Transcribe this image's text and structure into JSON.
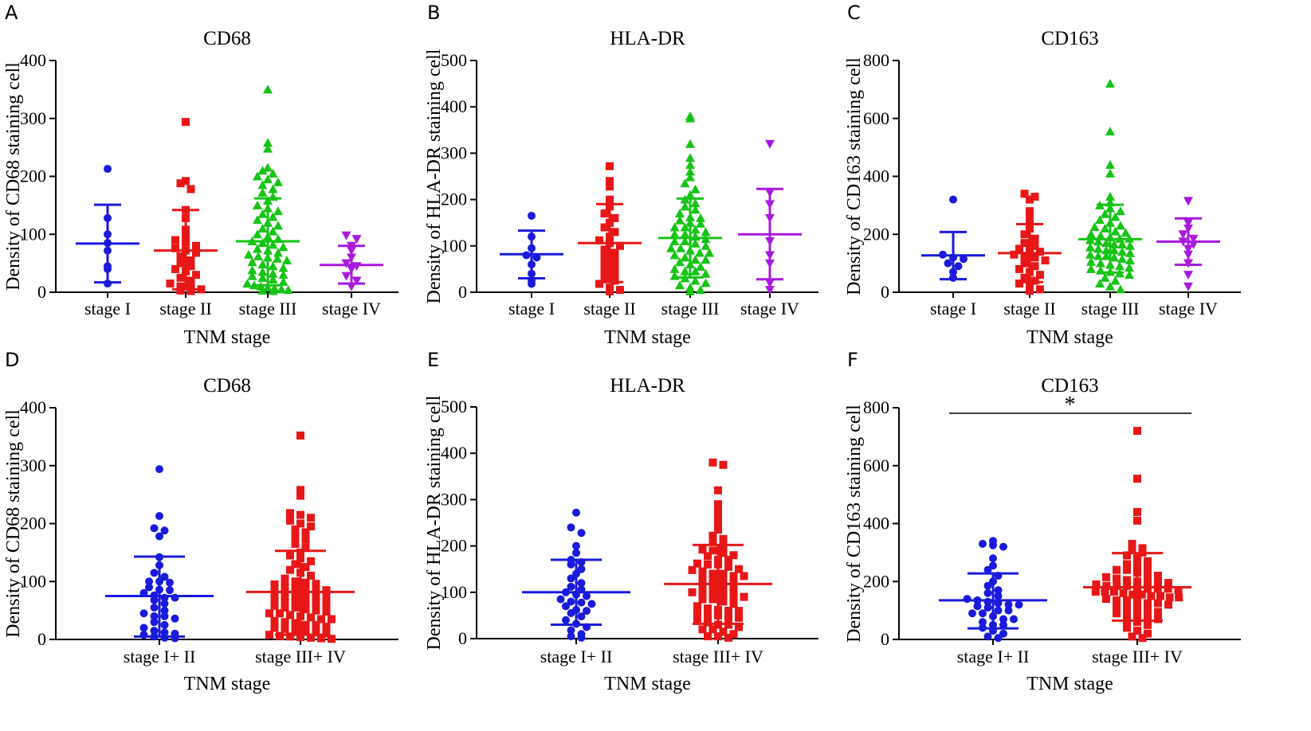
{
  "chart_data": [
    {
      "panel": "A",
      "type": "scatter",
      "title": "CD68",
      "xlabel": "TNM stage",
      "ylabel": "Density of CD68 staining cell",
      "ylim": [
        0,
        400
      ],
      "yticks": [
        0,
        100,
        200,
        300,
        400
      ],
      "series": [
        {
          "name": "stage I",
          "color": "#1a1adc",
          "marker": "circle",
          "mean": 84,
          "sd_low": 17,
          "sd_high": 151,
          "values": [
            213,
            128,
            100,
            85,
            72,
            45,
            15,
            40
          ]
        },
        {
          "name": "stage II",
          "color": "#e81717",
          "marker": "square",
          "mean": 72,
          "sd_low": 5,
          "sd_high": 142,
          "values": [
            294,
            192,
            188,
            178,
            142,
            128,
            108,
            98,
            90,
            86,
            80,
            76,
            72,
            68,
            62,
            55,
            50,
            45,
            40,
            36,
            30,
            25,
            20,
            15,
            10,
            8,
            5,
            3,
            2
          ]
        },
        {
          "name": "stage III",
          "color": "#16c416",
          "marker": "triangle",
          "mean": 88,
          "sd_low": 12,
          "sd_high": 162,
          "values": [
            350,
            258,
            248,
            215,
            210,
            205,
            200,
            195,
            190,
            185,
            178,
            172,
            165,
            158,
            150,
            145,
            140,
            135,
            130,
            125,
            120,
            115,
            110,
            105,
            100,
            96,
            92,
            88,
            85,
            82,
            78,
            75,
            72,
            68,
            65,
            62,
            58,
            55,
            52,
            48,
            45,
            42,
            38,
            35,
            32,
            28,
            25,
            22,
            18,
            15,
            12,
            10,
            8,
            6,
            4,
            3,
            2,
            5,
            30,
            60
          ]
        },
        {
          "name": "stage IV",
          "color": "#a81adc",
          "marker": "triangle-down",
          "mean": 47,
          "sd_low": 15,
          "sd_high": 80,
          "values": [
            98,
            92,
            80,
            72,
            60,
            50,
            45,
            40,
            28,
            20,
            10
          ]
        }
      ]
    },
    {
      "panel": "B",
      "type": "scatter",
      "title": "HLA-DR",
      "xlabel": "TNM stage",
      "ylabel": "Density of HLA-DR staining cell",
      "ylim": [
        0,
        500
      ],
      "yticks": [
        0,
        100,
        200,
        300,
        400,
        500
      ],
      "series": [
        {
          "name": "stage I",
          "color": "#1a1adc",
          "marker": "circle",
          "mean": 82,
          "sd_low": 30,
          "sd_high": 133,
          "values": [
            165,
            120,
            95,
            80,
            75,
            60,
            40,
            25,
            18
          ]
        },
        {
          "name": "stage II",
          "color": "#e81717",
          "marker": "square",
          "mean": 106,
          "sd_low": 22,
          "sd_high": 190,
          "values": [
            272,
            240,
            228,
            200,
            185,
            170,
            160,
            150,
            140,
            130,
            120,
            112,
            106,
            100,
            92,
            85,
            78,
            70,
            62,
            55,
            48,
            40,
            32,
            25,
            18,
            10,
            5,
            2
          ]
        },
        {
          "name": "stage III",
          "color": "#16c416",
          "marker": "triangle",
          "mean": 117,
          "sd_low": 32,
          "sd_high": 202,
          "values": [
            380,
            375,
            320,
            290,
            275,
            260,
            248,
            235,
            222,
            210,
            200,
            192,
            185,
            178,
            170,
            162,
            155,
            148,
            140,
            135,
            130,
            125,
            120,
            115,
            110,
            105,
            100,
            95,
            90,
            85,
            80,
            75,
            70,
            65,
            60,
            55,
            50,
            45,
            40,
            35,
            30,
            25,
            20,
            15,
            10,
            5,
            2,
            150,
            160,
            110,
            95,
            85,
            70,
            45,
            140,
            125
          ]
        },
        {
          "name": "stage IV",
          "color": "#a81adc",
          "marker": "triangle-down",
          "mean": 125,
          "sd_low": 28,
          "sd_high": 223,
          "values": [
            320,
            215,
            190,
            160,
            110,
            80,
            62,
            20,
            5
          ]
        }
      ]
    },
    {
      "panel": "C",
      "type": "scatter",
      "title": "CD163",
      "xlabel": "TNM stage",
      "ylabel": "Density of CD163 staining cell",
      "ylim": [
        0,
        800
      ],
      "yticks": [
        0,
        200,
        400,
        600,
        800
      ],
      "series": [
        {
          "name": "stage I",
          "color": "#1a1adc",
          "marker": "circle",
          "mean": 127,
          "sd_low": 45,
          "sd_high": 208,
          "values": [
            320,
            130,
            120,
            115,
            100,
            90,
            70,
            50
          ]
        },
        {
          "name": "stage II",
          "color": "#e81717",
          "marker": "square",
          "mean": 135,
          "sd_low": 35,
          "sd_high": 235,
          "values": [
            340,
            330,
            320,
            280,
            255,
            240,
            220,
            200,
            185,
            170,
            160,
            150,
            140,
            130,
            120,
            110,
            100,
            90,
            80,
            70,
            60,
            50,
            40,
            30,
            20,
            10,
            5,
            125,
            145
          ]
        },
        {
          "name": "stage III",
          "color": "#16c416",
          "marker": "triangle",
          "mean": 183,
          "sd_low": 68,
          "sd_high": 302,
          "values": [
            720,
            555,
            440,
            410,
            330,
            310,
            300,
            290,
            280,
            270,
            260,
            250,
            240,
            230,
            220,
            210,
            200,
            195,
            190,
            185,
            180,
            175,
            170,
            165,
            160,
            155,
            150,
            145,
            140,
            135,
            130,
            125,
            120,
            115,
            110,
            105,
            100,
            95,
            90,
            85,
            80,
            75,
            70,
            65,
            60,
            50,
            40,
            30,
            20,
            10,
            225,
            205,
            185,
            165,
            145,
            125
          ]
        },
        {
          "name": "stage IV",
          "color": "#a81adc",
          "marker": "triangle-down",
          "mean": 175,
          "sd_low": 95,
          "sd_high": 255,
          "values": [
            315,
            240,
            220,
            200,
            185,
            175,
            165,
            150,
            130,
            100,
            60,
            20
          ]
        }
      ]
    },
    {
      "panel": "D",
      "type": "scatter",
      "title": "CD68",
      "xlabel": "TNM stage",
      "ylabel": "Density of CD68 staining cell",
      "ylim": [
        0,
        400
      ],
      "yticks": [
        0,
        100,
        200,
        300,
        400
      ],
      "series": [
        {
          "name": "stage I+ II",
          "color": "#1a1adc",
          "marker": "circle",
          "mean": 75,
          "sd_low": 5,
          "sd_high": 143,
          "values": [
            294,
            213,
            192,
            188,
            178,
            142,
            128,
            115,
            108,
            100,
            98,
            90,
            86,
            85,
            80,
            76,
            72,
            68,
            62,
            55,
            50,
            45,
            40,
            36,
            30,
            25,
            20,
            15,
            12,
            10,
            8,
            5,
            3,
            2,
            40,
            72,
            100
          ]
        },
        {
          "name": "stage III+ IV",
          "color": "#e81717",
          "marker": "square",
          "mean": 82,
          "sd_low": 8,
          "sd_high": 153,
          "values": [
            352,
            258,
            248,
            218,
            215,
            210,
            205,
            200,
            195,
            190,
            185,
            178,
            172,
            165,
            158,
            150,
            145,
            140,
            135,
            130,
            125,
            120,
            115,
            110,
            105,
            100,
            98,
            96,
            92,
            90,
            88,
            85,
            82,
            80,
            78,
            75,
            72,
            70,
            68,
            65,
            62,
            60,
            58,
            55,
            52,
            50,
            48,
            45,
            42,
            40,
            38,
            35,
            32,
            30,
            28,
            25,
            22,
            20,
            18,
            15,
            12,
            10,
            8,
            6,
            5,
            4,
            3,
            2,
            1,
            95,
            85,
            75,
            65,
            55,
            45,
            35,
            25,
            15
          ]
        }
      ]
    },
    {
      "panel": "E",
      "type": "scatter",
      "title": "HLA-DR",
      "xlabel": "TNM stage",
      "ylabel": "Density of HLA-DR staining cell",
      "ylim": [
        0,
        500
      ],
      "yticks": [
        0,
        100,
        200,
        300,
        400,
        500
      ],
      "series": [
        {
          "name": "stage I+ II",
          "color": "#1a1adc",
          "marker": "circle",
          "mean": 100,
          "sd_low": 30,
          "sd_high": 170,
          "values": [
            272,
            240,
            228,
            200,
            185,
            170,
            165,
            160,
            150,
            140,
            130,
            120,
            112,
            106,
            100,
            95,
            92,
            85,
            80,
            78,
            75,
            70,
            62,
            60,
            55,
            48,
            40,
            32,
            25,
            18,
            10,
            5,
            2
          ]
        },
        {
          "name": "stage III+ IV",
          "color": "#e81717",
          "marker": "square",
          "mean": 118,
          "sd_low": 32,
          "sd_high": 202,
          "values": [
            380,
            375,
            320,
            290,
            275,
            260,
            248,
            235,
            222,
            215,
            210,
            200,
            192,
            190,
            185,
            178,
            170,
            162,
            160,
            155,
            148,
            140,
            135,
            130,
            125,
            120,
            115,
            110,
            110,
            105,
            100,
            95,
            95,
            90,
            85,
            85,
            80,
            75,
            70,
            65,
            62,
            60,
            55,
            50,
            45,
            45,
            40,
            35,
            30,
            25,
            20,
            20,
            15,
            10,
            5,
            5,
            2,
            150,
            160,
            140,
            125,
            170,
            180,
            145,
            135,
            100,
            90,
            60,
            50,
            30
          ]
        }
      ]
    },
    {
      "panel": "F",
      "type": "scatter",
      "title": "CD163",
      "xlabel": "TNM stage",
      "ylabel": "Density of CD163 staining cell",
      "ylim": [
        0,
        800
      ],
      "yticks": [
        0,
        200,
        400,
        600,
        800
      ],
      "significance": "*",
      "series": [
        {
          "name": "stage I+ II",
          "color": "#1a1adc",
          "marker": "circle",
          "mean": 135,
          "sd_low": 38,
          "sd_high": 228,
          "values": [
            340,
            330,
            325,
            320,
            280,
            255,
            240,
            220,
            200,
            185,
            170,
            160,
            150,
            140,
            135,
            130,
            125,
            120,
            120,
            115,
            110,
            100,
            100,
            90,
            90,
            80,
            70,
            70,
            60,
            50,
            50,
            40,
            30,
            20,
            10,
            5
          ]
        },
        {
          "name": "stage III+ IV",
          "color": "#e81717",
          "marker": "square",
          "mean": 180,
          "sd_low": 65,
          "sd_high": 298,
          "values": [
            720,
            555,
            440,
            410,
            330,
            315,
            310,
            300,
            290,
            280,
            270,
            260,
            255,
            250,
            240,
            240,
            230,
            225,
            220,
            210,
            205,
            200,
            200,
            195,
            190,
            185,
            185,
            180,
            175,
            175,
            170,
            165,
            165,
            160,
            155,
            150,
            150,
            145,
            140,
            135,
            130,
            125,
            125,
            120,
            115,
            110,
            105,
            100,
            95,
            90,
            85,
            80,
            75,
            70,
            65,
            60,
            50,
            40,
            30,
            20,
            10,
            5,
            215,
            195,
            185,
            175,
            165,
            155,
            145,
            135
          ]
        }
      ]
    }
  ]
}
